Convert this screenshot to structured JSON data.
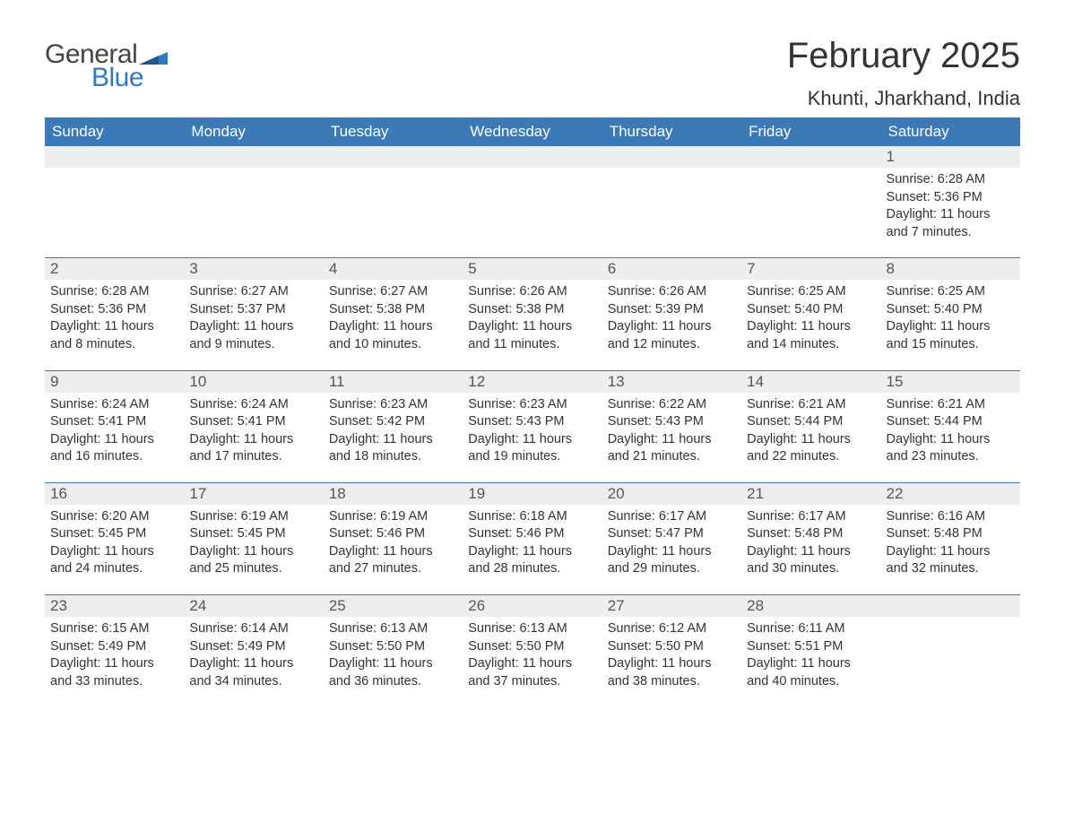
{
  "brand": {
    "general": "General",
    "blue": "Blue"
  },
  "title": "February 2025",
  "location": "Khunti, Jharkhand, India",
  "colors": {
    "header_bg": "#3b79b7",
    "header_text": "#ffffff",
    "daynum_bg": "#eeeeee",
    "row_border": "#3b79b7",
    "text": "#333333",
    "brand_blue": "#2e7cc0"
  },
  "weekdays": [
    "Sunday",
    "Monday",
    "Tuesday",
    "Wednesday",
    "Thursday",
    "Friday",
    "Saturday"
  ],
  "weeks": [
    {
      "days": [
        {
          "num": "",
          "sunrise": "",
          "sunset": "",
          "daylight": ""
        },
        {
          "num": "",
          "sunrise": "",
          "sunset": "",
          "daylight": ""
        },
        {
          "num": "",
          "sunrise": "",
          "sunset": "",
          "daylight": ""
        },
        {
          "num": "",
          "sunrise": "",
          "sunset": "",
          "daylight": ""
        },
        {
          "num": "",
          "sunrise": "",
          "sunset": "",
          "daylight": ""
        },
        {
          "num": "",
          "sunrise": "",
          "sunset": "",
          "daylight": ""
        },
        {
          "num": "1",
          "sunrise": "Sunrise: 6:28 AM",
          "sunset": "Sunset: 5:36 PM",
          "daylight": "Daylight: 11 hours and 7 minutes."
        }
      ]
    },
    {
      "days": [
        {
          "num": "2",
          "sunrise": "Sunrise: 6:28 AM",
          "sunset": "Sunset: 5:36 PM",
          "daylight": "Daylight: 11 hours and 8 minutes."
        },
        {
          "num": "3",
          "sunrise": "Sunrise: 6:27 AM",
          "sunset": "Sunset: 5:37 PM",
          "daylight": "Daylight: 11 hours and 9 minutes."
        },
        {
          "num": "4",
          "sunrise": "Sunrise: 6:27 AM",
          "sunset": "Sunset: 5:38 PM",
          "daylight": "Daylight: 11 hours and 10 minutes."
        },
        {
          "num": "5",
          "sunrise": "Sunrise: 6:26 AM",
          "sunset": "Sunset: 5:38 PM",
          "daylight": "Daylight: 11 hours and 11 minutes."
        },
        {
          "num": "6",
          "sunrise": "Sunrise: 6:26 AM",
          "sunset": "Sunset: 5:39 PM",
          "daylight": "Daylight: 11 hours and 12 minutes."
        },
        {
          "num": "7",
          "sunrise": "Sunrise: 6:25 AM",
          "sunset": "Sunset: 5:40 PM",
          "daylight": "Daylight: 11 hours and 14 minutes."
        },
        {
          "num": "8",
          "sunrise": "Sunrise: 6:25 AM",
          "sunset": "Sunset: 5:40 PM",
          "daylight": "Daylight: 11 hours and 15 minutes."
        }
      ]
    },
    {
      "days": [
        {
          "num": "9",
          "sunrise": "Sunrise: 6:24 AM",
          "sunset": "Sunset: 5:41 PM",
          "daylight": "Daylight: 11 hours and 16 minutes."
        },
        {
          "num": "10",
          "sunrise": "Sunrise: 6:24 AM",
          "sunset": "Sunset: 5:41 PM",
          "daylight": "Daylight: 11 hours and 17 minutes."
        },
        {
          "num": "11",
          "sunrise": "Sunrise: 6:23 AM",
          "sunset": "Sunset: 5:42 PM",
          "daylight": "Daylight: 11 hours and 18 minutes."
        },
        {
          "num": "12",
          "sunrise": "Sunrise: 6:23 AM",
          "sunset": "Sunset: 5:43 PM",
          "daylight": "Daylight: 11 hours and 19 minutes."
        },
        {
          "num": "13",
          "sunrise": "Sunrise: 6:22 AM",
          "sunset": "Sunset: 5:43 PM",
          "daylight": "Daylight: 11 hours and 21 minutes."
        },
        {
          "num": "14",
          "sunrise": "Sunrise: 6:21 AM",
          "sunset": "Sunset: 5:44 PM",
          "daylight": "Daylight: 11 hours and 22 minutes."
        },
        {
          "num": "15",
          "sunrise": "Sunrise: 6:21 AM",
          "sunset": "Sunset: 5:44 PM",
          "daylight": "Daylight: 11 hours and 23 minutes."
        }
      ]
    },
    {
      "days": [
        {
          "num": "16",
          "sunrise": "Sunrise: 6:20 AM",
          "sunset": "Sunset: 5:45 PM",
          "daylight": "Daylight: 11 hours and 24 minutes."
        },
        {
          "num": "17",
          "sunrise": "Sunrise: 6:19 AM",
          "sunset": "Sunset: 5:45 PM",
          "daylight": "Daylight: 11 hours and 25 minutes."
        },
        {
          "num": "18",
          "sunrise": "Sunrise: 6:19 AM",
          "sunset": "Sunset: 5:46 PM",
          "daylight": "Daylight: 11 hours and 27 minutes."
        },
        {
          "num": "19",
          "sunrise": "Sunrise: 6:18 AM",
          "sunset": "Sunset: 5:46 PM",
          "daylight": "Daylight: 11 hours and 28 minutes."
        },
        {
          "num": "20",
          "sunrise": "Sunrise: 6:17 AM",
          "sunset": "Sunset: 5:47 PM",
          "daylight": "Daylight: 11 hours and 29 minutes."
        },
        {
          "num": "21",
          "sunrise": "Sunrise: 6:17 AM",
          "sunset": "Sunset: 5:48 PM",
          "daylight": "Daylight: 11 hours and 30 minutes."
        },
        {
          "num": "22",
          "sunrise": "Sunrise: 6:16 AM",
          "sunset": "Sunset: 5:48 PM",
          "daylight": "Daylight: 11 hours and 32 minutes."
        }
      ]
    },
    {
      "days": [
        {
          "num": "23",
          "sunrise": "Sunrise: 6:15 AM",
          "sunset": "Sunset: 5:49 PM",
          "daylight": "Daylight: 11 hours and 33 minutes."
        },
        {
          "num": "24",
          "sunrise": "Sunrise: 6:14 AM",
          "sunset": "Sunset: 5:49 PM",
          "daylight": "Daylight: 11 hours and 34 minutes."
        },
        {
          "num": "25",
          "sunrise": "Sunrise: 6:13 AM",
          "sunset": "Sunset: 5:50 PM",
          "daylight": "Daylight: 11 hours and 36 minutes."
        },
        {
          "num": "26",
          "sunrise": "Sunrise: 6:13 AM",
          "sunset": "Sunset: 5:50 PM",
          "daylight": "Daylight: 11 hours and 37 minutes."
        },
        {
          "num": "27",
          "sunrise": "Sunrise: 6:12 AM",
          "sunset": "Sunset: 5:50 PM",
          "daylight": "Daylight: 11 hours and 38 minutes."
        },
        {
          "num": "28",
          "sunrise": "Sunrise: 6:11 AM",
          "sunset": "Sunset: 5:51 PM",
          "daylight": "Daylight: 11 hours and 40 minutes."
        },
        {
          "num": "",
          "sunrise": "",
          "sunset": "",
          "daylight": ""
        }
      ]
    }
  ]
}
